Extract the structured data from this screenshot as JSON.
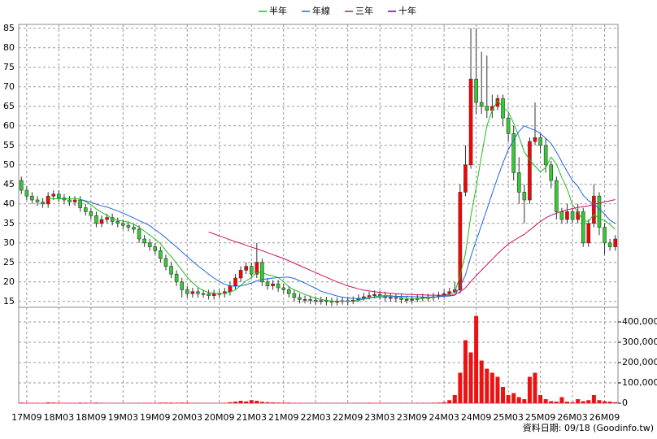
{
  "chart_data": {
    "type": "candlestick",
    "footer": "資料日期: 09/18 (Goodinfo.tw)",
    "categories": [
      null,
      "17M09",
      null,
      null,
      null,
      null,
      null,
      "18M03",
      null,
      null,
      null,
      null,
      null,
      "18M09",
      null,
      null,
      null,
      null,
      null,
      "19M03",
      null,
      null,
      null,
      null,
      null,
      "19M09",
      null,
      null,
      null,
      null,
      null,
      "20M03",
      null,
      null,
      null,
      null,
      null,
      "20M09",
      null,
      null,
      null,
      null,
      null,
      "21M03",
      null,
      null,
      null,
      null,
      null,
      "21M09",
      null,
      null,
      null,
      null,
      null,
      "22M03",
      null,
      null,
      null,
      null,
      null,
      "22M09",
      null,
      null,
      null,
      null,
      null,
      "23M03",
      null,
      null,
      null,
      null,
      null,
      "23M09",
      null,
      null,
      null,
      null,
      null,
      "24M03",
      null,
      null,
      null,
      null,
      null,
      "24M09",
      null,
      null,
      null,
      null,
      null,
      "25M03",
      null,
      null,
      null,
      null,
      null,
      "25M09",
      null,
      null,
      null,
      null,
      null,
      "26M03",
      null,
      null,
      null,
      null,
      null,
      "26M09",
      null,
      null
    ],
    "open": [
      46,
      43.5,
      42,
      41,
      40.5,
      40,
      42,
      42.5,
      41.5,
      41,
      40.5,
      41,
      39,
      38,
      37,
      35,
      36,
      36.5,
      35.5,
      35,
      34.5,
      34,
      33.5,
      31,
      30,
      29,
      28,
      26,
      24,
      22,
      20,
      18,
      17,
      17.5,
      17,
      17,
      16.5,
      17,
      17,
      17.5,
      19,
      21,
      23,
      24,
      22,
      25,
      20,
      19,
      19.5,
      18.5,
      18,
      17,
      16,
      15.5,
      15.5,
      15.3,
      15.2,
      15.2,
      15,
      14.8,
      15,
      15.2,
      15,
      15.3,
      15.8,
      16.2,
      16.5,
      16.8,
      16.5,
      16,
      16,
      15.8,
      15.5,
      15.5,
      15.5,
      15.8,
      16,
      16,
      16.2,
      16.5,
      17,
      17.5,
      18,
      43,
      50,
      72,
      66,
      65,
      64,
      65,
      67,
      62,
      58,
      48,
      43,
      41,
      56,
      57,
      55,
      50,
      46,
      38,
      36,
      38,
      36,
      38,
      30,
      35,
      42,
      34,
      30,
      29
    ],
    "high": [
      47,
      44.5,
      43,
      42,
      41.5,
      43,
      43.5,
      43.5,
      42.5,
      42,
      42,
      42,
      40,
      39,
      38,
      37,
      37.5,
      37.5,
      36.5,
      36,
      35.5,
      35,
      34.5,
      32,
      31,
      30,
      29,
      27,
      25,
      23,
      21,
      19,
      18.5,
      18.5,
      18,
      18,
      18,
      18,
      18.5,
      20,
      22,
      24,
      25,
      25,
      30,
      26,
      21,
      20.5,
      20.5,
      19.5,
      19,
      18,
      17,
      16.5,
      16.5,
      16.3,
      16.2,
      16.2,
      16,
      16,
      16.2,
      16.2,
      16.3,
      16.8,
      17.2,
      17.5,
      17.8,
      17.8,
      17.5,
      17,
      17,
      16.8,
      16.5,
      16.5,
      16.8,
      17,
      17,
      17.2,
      17.5,
      18,
      18.5,
      20,
      45,
      55,
      85,
      85,
      79,
      78,
      68,
      68,
      68,
      63,
      60,
      52,
      45,
      57,
      66,
      58,
      57,
      51,
      47,
      39,
      40,
      39,
      40,
      39,
      36,
      45,
      43,
      35,
      31,
      32
    ],
    "low": [
      42.5,
      41,
      40,
      39.5,
      39,
      39,
      41,
      40.5,
      40,
      39.5,
      39.5,
      38,
      37,
      36,
      34,
      34,
      35,
      34.5,
      34,
      33.5,
      33,
      32.5,
      30,
      29,
      28,
      27,
      25,
      23,
      21,
      19,
      16,
      16,
      16,
      16,
      16,
      15.5,
      15.5,
      16,
      16,
      16.5,
      18,
      20,
      22,
      21,
      21,
      19,
      18,
      18,
      17.5,
      17,
      16,
      15,
      14.5,
      14.5,
      14.3,
      14.2,
      14.2,
      14,
      13.8,
      14,
      14.2,
      14,
      14.3,
      14.8,
      15.2,
      15.5,
      15.8,
      15.5,
      15,
      15,
      14.8,
      14.5,
      14.5,
      14.5,
      14.8,
      15,
      15,
      15.2,
      15.5,
      16,
      16.5,
      17,
      17,
      42,
      49,
      63,
      63,
      62,
      62,
      64,
      60,
      56,
      46,
      40,
      35,
      40,
      55,
      53,
      48,
      44,
      36,
      35,
      35,
      35,
      35,
      29,
      29,
      34,
      32,
      27,
      28,
      28
    ],
    "close": [
      43.5,
      42,
      41,
      40.5,
      40,
      42,
      42.5,
      41.5,
      41,
      40.5,
      41,
      39,
      38,
      37,
      35,
      36,
      36.5,
      35.5,
      35,
      34.5,
      34,
      33.5,
      31,
      30,
      29,
      28,
      26,
      24,
      22,
      20,
      18,
      17,
      17.5,
      17,
      17,
      16.5,
      17,
      17,
      17.5,
      19,
      21,
      23,
      24,
      22,
      25,
      20,
      19,
      19.5,
      18.5,
      18,
      17,
      16,
      15.5,
      15.5,
      15.3,
      15.2,
      15.2,
      15,
      14.8,
      15,
      15.2,
      15,
      15.3,
      15.8,
      16.2,
      16.5,
      16.8,
      16.5,
      16,
      16,
      15.8,
      15.5,
      15.5,
      15.5,
      15.8,
      16,
      16,
      16.2,
      16.5,
      17,
      17.5,
      18,
      43,
      50,
      72,
      66,
      65,
      64,
      65,
      67,
      62,
      58,
      48,
      43,
      41,
      56,
      57,
      55,
      50,
      46,
      38,
      36,
      38,
      36,
      38,
      30,
      35,
      42,
      34,
      30,
      29,
      31
    ],
    "volume": [
      3000,
      2500,
      2000,
      2000,
      1500,
      4000,
      3000,
      2500,
      2000,
      2000,
      2000,
      3000,
      2500,
      2000,
      3000,
      2000,
      1500,
      1500,
      1500,
      1500,
      1500,
      1500,
      2000,
      2000,
      2000,
      2000,
      3000,
      3000,
      3000,
      2500,
      3000,
      3000,
      2000,
      2000,
      1500,
      1500,
      1500,
      1500,
      2000,
      5000,
      8000,
      12000,
      9000,
      15000,
      12000,
      7000,
      5000,
      4000,
      3000,
      3000,
      3000,
      2000,
      2000,
      1500,
      1500,
      1500,
      1500,
      1500,
      1500,
      1500,
      1500,
      1500,
      1500,
      2000,
      2000,
      2500,
      2000,
      2000,
      1500,
      1500,
      1500,
      1500,
      1500,
      1500,
      2000,
      2000,
      2000,
      2500,
      3000,
      5000,
      15000,
      40000,
      150000,
      310000,
      250000,
      430000,
      210000,
      170000,
      150000,
      130000,
      80000,
      40000,
      50000,
      30000,
      20000,
      130000,
      150000,
      40000,
      20000,
      10000,
      8000,
      30000,
      8000,
      5000,
      20000,
      10000,
      15000,
      40000,
      15000,
      10000,
      8000,
      5000
    ],
    "up_color": "#ff0000",
    "down_color": "#33cc33",
    "volume_color": "#ee1111",
    "ma_series": [
      {
        "name": "半年",
        "color": "#22bb22",
        "values": [
          null,
          null,
          null,
          null,
          null,
          41.5,
          41.3,
          41.3,
          41.3,
          41.3,
          41.4,
          41.2,
          40.6,
          39.8,
          38.7,
          37.8,
          37.1,
          36.2,
          35.8,
          35.6,
          35.3,
          34.8,
          34.0,
          33.0,
          32.0,
          31.0,
          29.8,
          28.0,
          26.5,
          24.8,
          23.0,
          21.2,
          19.8,
          18.6,
          17.8,
          17.3,
          17.1,
          17.0,
          17.1,
          17.4,
          18.0,
          19.1,
          20.3,
          21.1,
          22.4,
          22.5,
          21.8,
          21.6,
          21.1,
          20.1,
          18.7,
          18.0,
          17.4,
          16.8,
          16.3,
          15.8,
          15.5,
          15.3,
          15.1,
          15.1,
          15.1,
          15.0,
          15.1,
          15.3,
          15.6,
          15.8,
          16.2,
          16.4,
          16.5,
          16.5,
          16.3,
          16.0,
          15.8,
          15.7,
          15.7,
          15.8,
          15.9,
          16.0,
          16.2,
          16.5,
          16.9,
          17.4,
          21.6,
          27.3,
          36.9,
          44.3,
          52.3,
          60.0,
          64.0,
          66.5,
          64.8,
          63.6,
          60.7,
          57.2,
          53.3,
          51.3,
          49.7,
          48.2,
          49.3,
          52.0,
          50.2,
          46.8,
          43.8,
          39.8,
          38.0,
          35.7,
          35.5,
          37.3,
          36.2,
          35.8,
          34.7,
          33.5
        ]
      },
      {
        "name": "年線",
        "color": "#2266dd",
        "values": [
          null,
          null,
          null,
          null,
          null,
          null,
          null,
          null,
          null,
          null,
          null,
          41.1,
          40.8,
          40.4,
          39.9,
          39.5,
          39.2,
          38.7,
          38.2,
          37.6,
          37.0,
          36.4,
          35.7,
          35.1,
          34.4,
          33.4,
          32.4,
          31.3,
          30.1,
          29.0,
          27.7,
          26.5,
          25.3,
          24.1,
          23.1,
          22.0,
          21.0,
          20.1,
          19.4,
          19.0,
          18.9,
          19.0,
          19.3,
          19.7,
          20.3,
          20.6,
          20.8,
          21.0,
          21.1,
          21.2,
          21.2,
          20.9,
          20.3,
          19.7,
          19.0,
          18.4,
          17.6,
          17.2,
          16.8,
          16.4,
          16.1,
          15.9,
          15.8,
          15.7,
          15.8,
          15.9,
          16.0,
          16.1,
          16.2,
          16.2,
          16.3,
          16.3,
          16.3,
          16.2,
          16.2,
          16.1,
          16.1,
          16.1,
          16.2,
          16.3,
          16.4,
          16.6,
          18.9,
          21.8,
          26.5,
          30.6,
          34.6,
          38.6,
          42.7,
          46.7,
          50.5,
          53.9,
          56.4,
          58.6,
          60.0,
          59.4,
          58.9,
          58.0,
          56.8,
          55.5,
          53.3,
          50.8,
          48.3,
          46.0,
          44.5,
          42.2,
          40.8,
          40.0,
          38.7,
          37.4,
          35.8,
          35.0
        ]
      },
      {
        "name": "三年",
        "color": "#cc1166",
        "values": [
          null,
          null,
          null,
          null,
          null,
          null,
          null,
          null,
          null,
          null,
          null,
          null,
          null,
          null,
          null,
          null,
          null,
          null,
          null,
          null,
          null,
          null,
          null,
          null,
          null,
          null,
          null,
          null,
          null,
          null,
          null,
          null,
          null,
          null,
          null,
          32.8,
          32.3,
          31.8,
          31.3,
          30.8,
          30.3,
          29.9,
          29.4,
          28.9,
          28.5,
          28.0,
          27.5,
          27.0,
          26.5,
          26.0,
          25.4,
          24.8,
          24.2,
          23.6,
          23.0,
          22.4,
          21.8,
          21.2,
          20.6,
          20.0,
          19.5,
          19.0,
          18.6,
          18.2,
          17.9,
          17.7,
          17.5,
          17.3,
          17.2,
          17.1,
          17.0,
          16.9,
          16.8,
          16.8,
          16.7,
          16.7,
          16.6,
          16.6,
          16.6,
          16.6,
          16.6,
          16.7,
          17.5,
          18.5,
          20.1,
          21.6,
          23.0,
          24.4,
          25.8,
          27.2,
          28.5,
          29.7,
          30.6,
          31.4,
          32.2,
          33.3,
          34.4,
          35.5,
          36.4,
          37.1,
          37.6,
          38.1,
          38.5,
          38.8,
          39.1,
          39.3,
          39.5,
          39.9,
          40.2,
          40.5,
          40.8,
          41.1
        ]
      },
      {
        "name": "十年",
        "color": "#660099",
        "values": [
          null,
          null,
          null,
          null,
          null,
          null,
          null,
          null,
          null,
          null,
          null,
          null,
          null,
          null,
          null,
          null,
          null,
          null,
          null,
          null,
          null,
          null,
          null,
          null,
          null,
          null,
          null,
          null,
          null,
          null,
          null,
          null,
          null,
          null,
          null,
          null,
          null,
          null,
          null,
          null,
          null,
          null,
          null,
          null,
          null,
          null,
          null,
          null,
          null,
          null,
          null,
          null,
          null,
          null,
          null,
          null,
          null,
          null,
          null,
          null,
          null,
          null,
          null,
          null,
          null,
          null,
          null,
          null,
          null,
          null,
          null,
          null,
          null,
          null,
          null,
          null,
          null,
          null,
          null,
          null,
          null,
          null,
          null,
          null,
          null,
          null,
          null,
          null,
          null,
          null,
          null,
          null,
          null,
          null,
          null,
          null,
          null,
          null,
          null,
          null,
          null,
          null,
          null,
          null,
          null,
          null,
          null,
          null,
          null,
          null,
          null,
          null
        ]
      }
    ],
    "ylim": [
      13.5,
      86
    ],
    "yticks": [
      15,
      20,
      25,
      30,
      35,
      40,
      45,
      50,
      55,
      60,
      65,
      70,
      75,
      80,
      85
    ],
    "volume_ylim": [
      0,
      472000
    ],
    "volume_yticks": [
      0,
      {
        "value": 100000,
        "label": "100,000"
      },
      {
        "value": 200000,
        "label": "200,000"
      },
      {
        "value": 300000,
        "label": "300,000"
      },
      {
        "value": 400000,
        "label": "400,000"
      }
    ],
    "grid": true
  }
}
